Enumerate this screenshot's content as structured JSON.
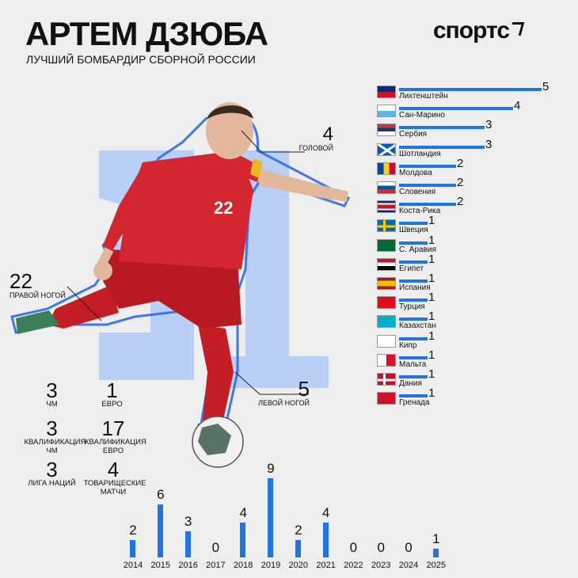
{
  "header": {
    "title": "АРТЕМ ДЗЮБА",
    "subtitle": "ЛУЧШИЙ БОМБАРДИР СБОРНОЙ РОССИИ",
    "logo": "спортс"
  },
  "player": {
    "shirt_number": "22"
  },
  "callouts": {
    "head": {
      "value": "4",
      "label": "ГОЛОВОЙ"
    },
    "right_foot": {
      "value": "22",
      "label": "ПРАВОЙ НОГОЙ"
    },
    "left_foot": {
      "value": "5",
      "label": "ЛЕВОЙ НОГОЙ"
    }
  },
  "tournaments": [
    {
      "value": "3",
      "label": "ЧМ"
    },
    {
      "value": "1",
      "label": "ЕВРО"
    },
    {
      "value": "3",
      "label": "КВАЛИФИКАЦИЯ ЧМ"
    },
    {
      "value": "17",
      "label": "КВАЛИФИКАЦИЯ ЕВРО"
    },
    {
      "value": "3",
      "label": "ЛИГА НАЦИЙ"
    },
    {
      "value": "4",
      "label": "ТОВАРИЩЕСКИЕ МАТЧИ"
    }
  ],
  "colors": {
    "accent": "#1f74e8",
    "background": "#eeeeef",
    "background_number": "#b9cff5"
  },
  "chart_data": [
    {
      "type": "bar",
      "orientation": "horizontal",
      "categories": [
        "Лихтенштейн",
        "Сан-Марино",
        "Сербия",
        "Шотландия",
        "Молдова",
        "Словения",
        "Коста-Рика",
        "Швеция",
        "С. Аравия",
        "Египет",
        "Испания",
        "Турция",
        "Казахстан",
        "Кипр",
        "Мальта",
        "Дания",
        "Гренада"
      ],
      "values": [
        5,
        4,
        3,
        3,
        2,
        2,
        2,
        1,
        1,
        1,
        1,
        1,
        1,
        1,
        1,
        1,
        1
      ],
      "flags": [
        "liechtenstein",
        "san-marino",
        "serbia",
        "scotland",
        "moldova",
        "slovenia",
        "costa-rica",
        "sweden",
        "saudi-arabia",
        "egypt",
        "spain",
        "turkey",
        "kazakhstan",
        "cyprus",
        "malta",
        "denmark",
        "grenada"
      ]
    },
    {
      "type": "bar",
      "categories": [
        "2014",
        "2015",
        "2016",
        "2017",
        "2018",
        "2019",
        "2020",
        "2021",
        "2022",
        "2023",
        "2024",
        "2025"
      ],
      "values": [
        2,
        6,
        3,
        0,
        4,
        9,
        2,
        4,
        0,
        0,
        0,
        1
      ]
    }
  ]
}
